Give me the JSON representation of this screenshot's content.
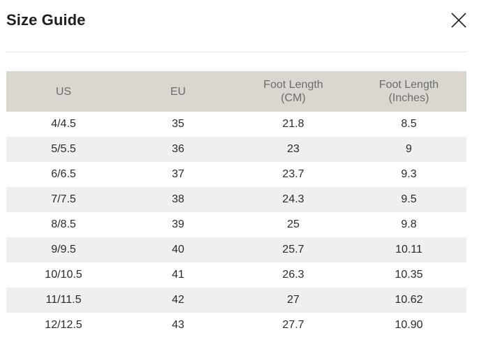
{
  "header": {
    "title": "Size Guide",
    "close_icon": "close-icon"
  },
  "table": {
    "columns": [
      {
        "line1": "US",
        "line2": ""
      },
      {
        "line1": "EU",
        "line2": ""
      },
      {
        "line1": "Foot Length",
        "line2": "(CM)"
      },
      {
        "line1": "Foot Length",
        "line2": "(Inches)"
      }
    ],
    "rows": [
      [
        "4/4.5",
        "35",
        "21.8",
        "8.5"
      ],
      [
        "5/5.5",
        "36",
        "23",
        "9"
      ],
      [
        "6/6.5",
        "37",
        "23.7",
        "9.3"
      ],
      [
        "7/7.5",
        "38",
        "24.3",
        "9.5"
      ],
      [
        "8/8.5",
        "39",
        "25",
        "9.8"
      ],
      [
        "9/9.5",
        "40",
        "25.7",
        "10.11"
      ],
      [
        "10/10.5",
        "41",
        "26.3",
        "10.35"
      ],
      [
        "11/11.5",
        "42",
        "27",
        "10.62"
      ],
      [
        "12/12.5",
        "43",
        "27.7",
        "10.90"
      ]
    ]
  },
  "colors": {
    "header_row_bg": "#d9d7d0",
    "stripe_bg": "#eeeff1",
    "header_text": "#6c6c6c"
  }
}
